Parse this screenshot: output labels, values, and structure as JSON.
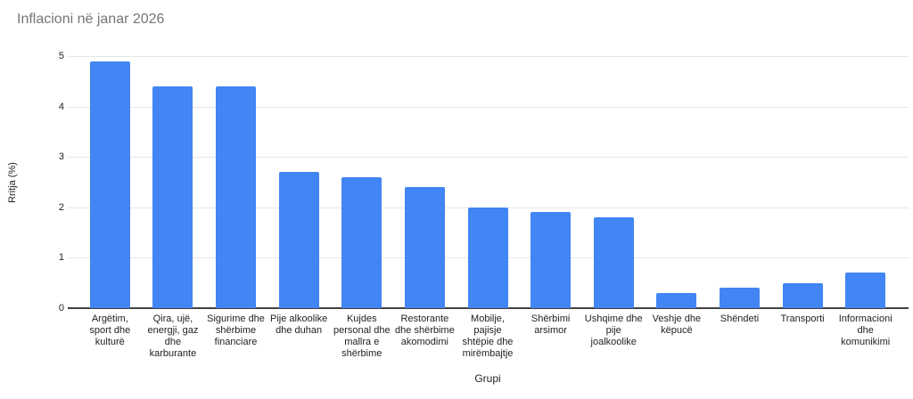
{
  "chart_data": {
    "type": "bar",
    "title": "Inflacioni në janar 2026",
    "xlabel": "Grupi",
    "ylabel": "Rritja (%)",
    "ylim": [
      0,
      5
    ],
    "yticks": [
      0,
      1,
      2,
      3,
      4,
      5
    ],
    "grid": true,
    "legend_position": "none",
    "categories": [
      "Argëtim, sport dhe kulturë",
      "Qira, ujë, energji, gaz dhe karburante",
      "Sigurime dhe shërbime financiare",
      "Pije alkoolike dhe duhan",
      "Kujdes personal dhe mallra e shërbime",
      "Restorante dhe shërbime akomodimi",
      "Mobilje, pajisje shtëpie dhe mirëmbajtje",
      "Shërbimi arsimor",
      "Ushqime dhe pije joalkoolike",
      "Veshje dhe këpucë",
      "Shëndeti",
      "Transporti",
      "Informacioni dhe komunikimi"
    ],
    "values": [
      4.9,
      4.4,
      4.4,
      2.7,
      2.6,
      2.4,
      2.0,
      1.9,
      1.8,
      0.3,
      0.4,
      0.5,
      0.7
    ]
  },
  "colors": {
    "bar": "#4285f4",
    "title_text": "#757575",
    "tick_text": "#222222",
    "axis_title_text": "#222222",
    "gridline": "#e6e6e6",
    "baseline": "#424242"
  }
}
